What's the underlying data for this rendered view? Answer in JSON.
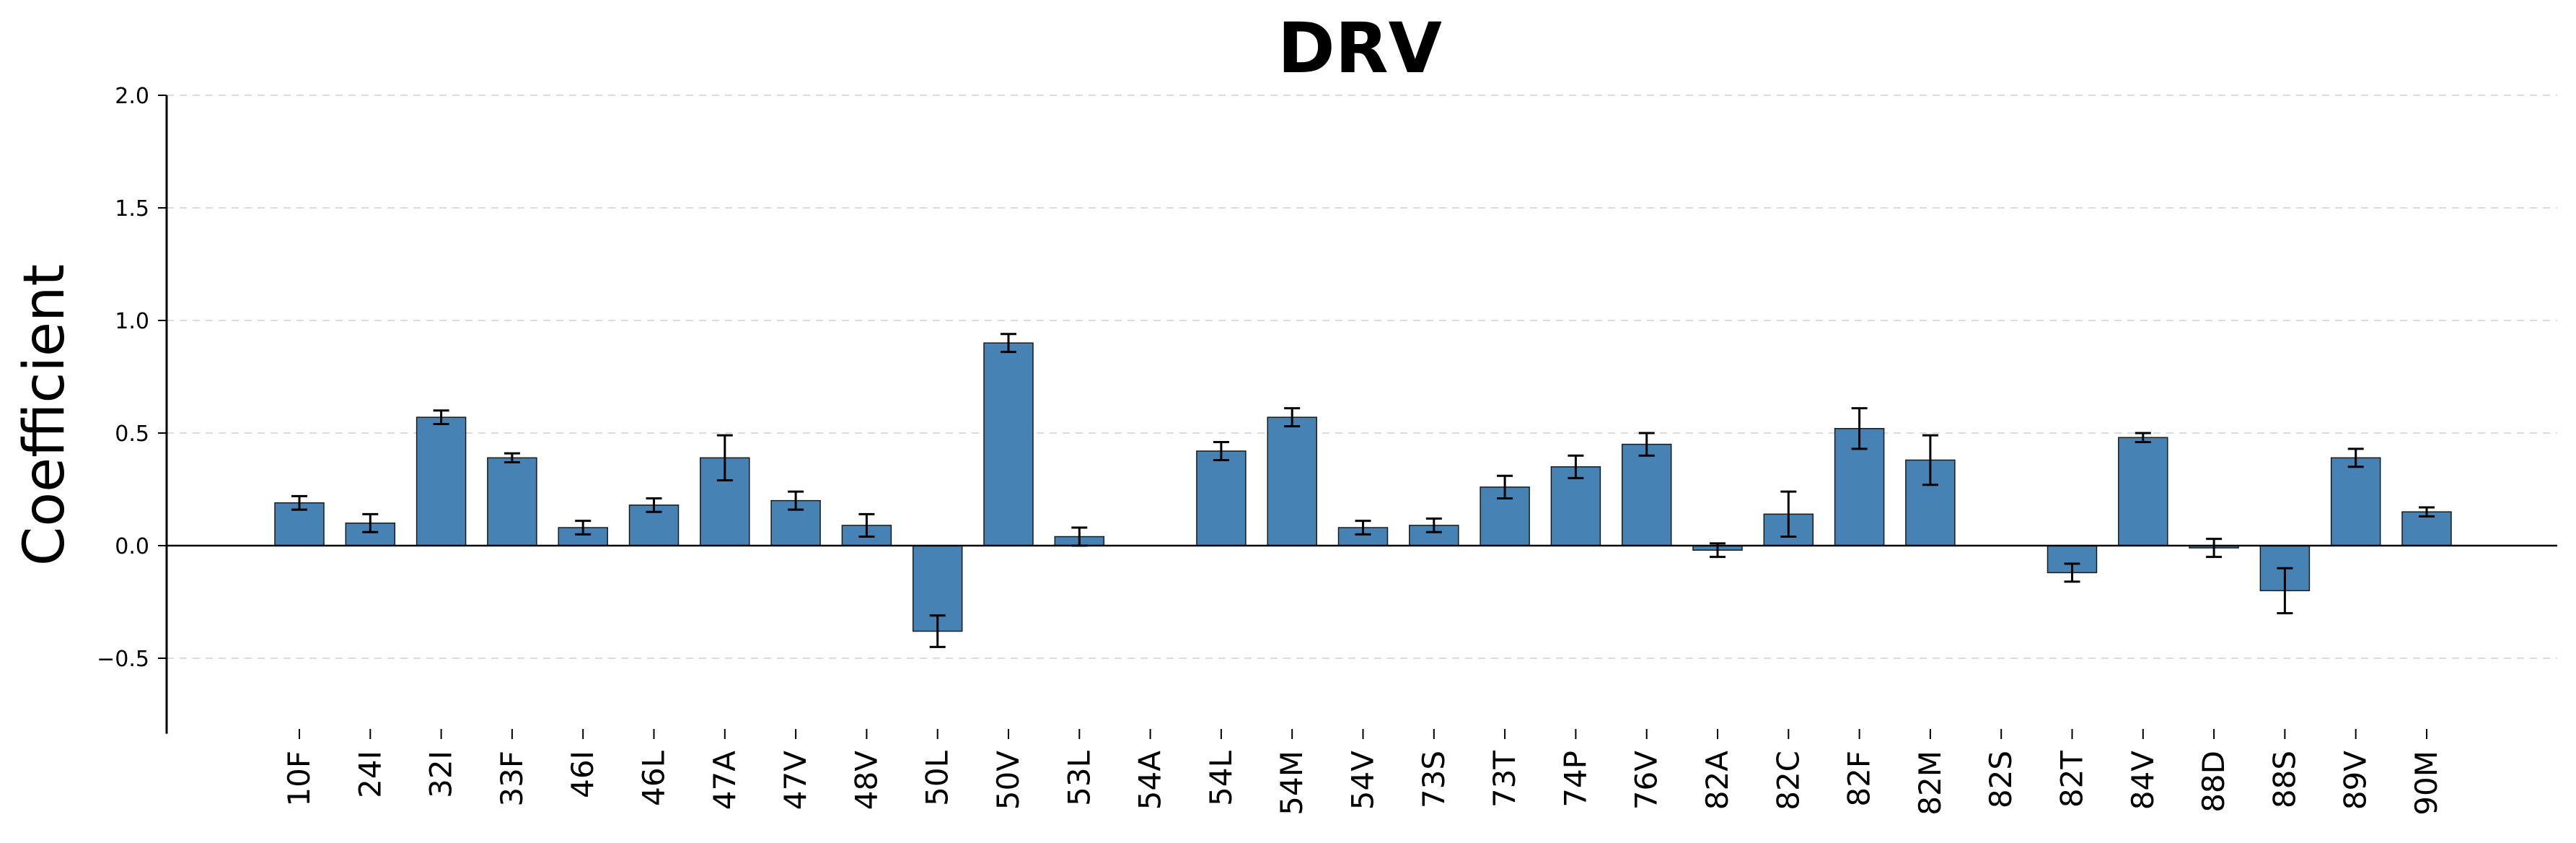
{
  "chart_data": {
    "type": "bar",
    "title": "DRV",
    "xlabel": "",
    "ylabel": "Coefficient",
    "ylim": [
      -0.8,
      2.0
    ],
    "yticks": [
      -0.5,
      0.0,
      0.5,
      1.0,
      1.5,
      2.0
    ],
    "ytick_labels": [
      "−0.5",
      "0.0",
      "0.5",
      "1.0",
      "1.5",
      "2.0"
    ],
    "grid": "horizontal-dashed",
    "error_bars": true,
    "categories": [
      "10F",
      "24I",
      "32I",
      "33F",
      "46I",
      "46L",
      "47A",
      "47V",
      "48V",
      "50L",
      "50V",
      "53L",
      "54A",
      "54L",
      "54M",
      "54V",
      "73S",
      "73T",
      "74P",
      "76V",
      "82A",
      "82C",
      "82F",
      "82M",
      "82S",
      "82T",
      "84V",
      "88D",
      "88S",
      "89V",
      "90M"
    ],
    "values": [
      0.19,
      0.1,
      0.57,
      0.39,
      0.08,
      0.18,
      0.39,
      0.2,
      0.09,
      -0.38,
      0.9,
      0.04,
      0.0,
      0.42,
      0.57,
      0.08,
      0.09,
      0.26,
      0.35,
      0.45,
      -0.02,
      0.14,
      0.52,
      0.38,
      0.0,
      -0.12,
      0.48,
      -0.01,
      -0.2,
      0.39,
      0.15
    ],
    "errors": [
      0.03,
      0.04,
      0.03,
      0.02,
      0.03,
      0.03,
      0.1,
      0.04,
      0.05,
      0.07,
      0.04,
      0.04,
      0.0,
      0.04,
      0.04,
      0.03,
      0.03,
      0.05,
      0.05,
      0.05,
      0.03,
      0.1,
      0.09,
      0.11,
      0.0,
      0.04,
      0.02,
      0.04,
      0.1,
      0.04,
      0.02
    ],
    "colors": {
      "bar": "#4682b4",
      "bar_edge": "#1a1a1a",
      "error": "#000000",
      "grid": "#dddddd",
      "axis": "#000000"
    }
  }
}
